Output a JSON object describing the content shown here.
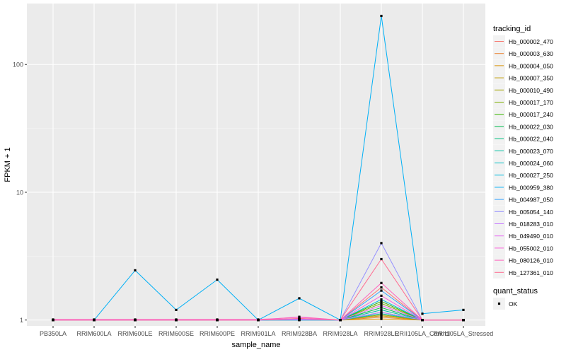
{
  "chart_data": {
    "type": "line",
    "xlabel": "sample_name",
    "ylabel": "FPKM + 1",
    "y_scale": "log10",
    "ylim": [
      0.9,
      300
    ],
    "y_ticks": [
      1,
      10,
      100
    ],
    "y_tick_labels": [
      "1",
      "10",
      "100"
    ],
    "grid": true,
    "legend_position": "right",
    "categories": [
      "PB350LA",
      "RRIM600LA",
      "RRIM600LE",
      "RRIM600SE",
      "RRIM600PE",
      "RRIM901LA",
      "RRIM928BA",
      "RRIM928LA",
      "RRIM928LE",
      "RRII105LA_Control",
      "RRII105LA_Stressed"
    ],
    "legend_title": "tracking_id",
    "series": [
      {
        "name": "Hb_000002_470",
        "color": "#F8766D",
        "values": [
          1,
          1,
          1,
          1,
          1,
          1,
          1.01,
          1,
          1.8,
          1,
          1
        ]
      },
      {
        "name": "Hb_000003_630",
        "color": "#EA8331",
        "values": [
          1,
          1,
          1,
          1,
          1,
          1,
          1.01,
          1,
          1.05,
          1,
          1
        ]
      },
      {
        "name": "Hb_000004_050",
        "color": "#D89000",
        "values": [
          1,
          1,
          1,
          1,
          1,
          1,
          1,
          1,
          1.02,
          1,
          1
        ]
      },
      {
        "name": "Hb_000007_350",
        "color": "#C09B00",
        "values": [
          1,
          1,
          1,
          1,
          1,
          1,
          1.01,
          1,
          1.08,
          1,
          1
        ]
      },
      {
        "name": "Hb_000010_490",
        "color": "#A3A500",
        "values": [
          1,
          1,
          1,
          1,
          1,
          1,
          1.01,
          1,
          1.1,
          1,
          1
        ]
      },
      {
        "name": "Hb_000017_170",
        "color": "#7CAE00",
        "values": [
          1,
          1,
          1,
          1,
          1,
          1,
          1.02,
          1,
          1.35,
          1,
          1
        ]
      },
      {
        "name": "Hb_000017_240",
        "color": "#39B600",
        "values": [
          1,
          1,
          1,
          1,
          1,
          1,
          1.02,
          1,
          1.4,
          1,
          1
        ]
      },
      {
        "name": "Hb_000022_030",
        "color": "#00BB4E",
        "values": [
          1,
          1,
          1,
          1,
          1,
          1,
          1.01,
          1,
          1.25,
          1,
          1
        ]
      },
      {
        "name": "Hb_000022_040",
        "color": "#00BF7D",
        "values": [
          1,
          1,
          1,
          1,
          1,
          1,
          1.01,
          1,
          1.15,
          1,
          1
        ]
      },
      {
        "name": "Hb_000023_070",
        "color": "#00C1A3",
        "values": [
          1,
          1,
          1,
          1,
          1,
          1,
          1.01,
          1,
          1.2,
          1,
          1
        ]
      },
      {
        "name": "Hb_000024_060",
        "color": "#00BFC4",
        "values": [
          1,
          1,
          1,
          1,
          1,
          1,
          1,
          1,
          1.12,
          1,
          1
        ]
      },
      {
        "name": "Hb_000027_250",
        "color": "#00BAE0",
        "values": [
          1,
          1,
          1,
          1,
          1,
          1,
          1.01,
          1,
          1.45,
          1,
          1
        ]
      },
      {
        "name": "Hb_000959_380",
        "color": "#00B0F6",
        "values": [
          1,
          1,
          2.45,
          1.2,
          2.07,
          1,
          1.48,
          1,
          240,
          1.12,
          1.2
        ]
      },
      {
        "name": "Hb_004987_050",
        "color": "#35A2FF",
        "values": [
          1,
          1,
          1,
          1,
          1,
          1,
          1,
          1,
          1.7,
          1,
          1
        ]
      },
      {
        "name": "Hb_005054_140",
        "color": "#9590FF",
        "values": [
          1,
          1,
          1,
          1,
          1,
          1,
          1.02,
          1,
          4.0,
          1,
          1
        ]
      },
      {
        "name": "Hb_018283_010",
        "color": "#C77CFF",
        "values": [
          1,
          1,
          1,
          1,
          1,
          1,
          1.01,
          1,
          1.15,
          1,
          1
        ]
      },
      {
        "name": "Hb_049490_010",
        "color": "#E76BF3",
        "values": [
          1,
          1,
          1,
          1,
          1,
          1,
          1.02,
          1,
          1.3,
          1,
          1
        ]
      },
      {
        "name": "Hb_055002_010",
        "color": "#FA62DB",
        "values": [
          1.01,
          1.01,
          1.01,
          1.01,
          1.01,
          1.01,
          1.05,
          1,
          1.55,
          1,
          1
        ]
      },
      {
        "name": "Hb_080126_010",
        "color": "#FF62BC",
        "values": [
          1,
          1,
          1,
          1,
          1,
          1,
          1.06,
          1,
          1.95,
          1,
          1
        ]
      },
      {
        "name": "Hb_127361_010",
        "color": "#FF6C91",
        "values": [
          1,
          1,
          1,
          1,
          1,
          1,
          1.03,
          1,
          3.0,
          1,
          1
        ]
      }
    ],
    "shape_legend": {
      "title": "quant_status",
      "entries": [
        "OK"
      ]
    }
  }
}
